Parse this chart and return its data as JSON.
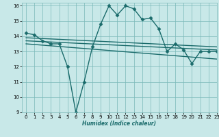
{
  "bg_color": "#c8e8e8",
  "grid_color": "#7ab8b8",
  "line_color": "#1a6b6b",
  "xlabel": "Humidex (Indice chaleur)",
  "xlim": [
    -0.5,
    23
  ],
  "ylim": [
    9,
    16.2
  ],
  "yticks": [
    9,
    10,
    11,
    12,
    13,
    14,
    15,
    16
  ],
  "xticks": [
    0,
    1,
    2,
    3,
    4,
    5,
    6,
    7,
    8,
    9,
    10,
    11,
    12,
    13,
    14,
    15,
    16,
    17,
    18,
    19,
    20,
    21,
    22,
    23
  ],
  "series": [
    {
      "x": [
        0,
        1,
        2,
        3,
        4,
        5,
        6,
        7,
        8,
        9,
        10,
        11,
        12,
        13,
        14,
        15,
        16,
        17,
        18,
        19,
        20,
        21,
        22,
        23
      ],
      "y": [
        14.2,
        14.1,
        13.7,
        13.5,
        13.5,
        12.0,
        9.0,
        11.0,
        13.3,
        14.8,
        16.0,
        15.4,
        16.0,
        15.8,
        15.1,
        15.2,
        14.5,
        13.0,
        13.5,
        13.1,
        12.2,
        13.0,
        13.0,
        13.0
      ],
      "marker": "D",
      "markersize": 2.5,
      "linewidth": 1.0
    },
    {
      "x": [
        0,
        23
      ],
      "y": [
        13.9,
        13.3
      ],
      "marker": null,
      "markersize": 0,
      "linewidth": 1.0
    },
    {
      "x": [
        0,
        23
      ],
      "y": [
        13.7,
        13.1
      ],
      "marker": null,
      "markersize": 0,
      "linewidth": 1.0
    },
    {
      "x": [
        0,
        23
      ],
      "y": [
        13.5,
        12.5
      ],
      "marker": null,
      "markersize": 0,
      "linewidth": 1.0
    }
  ]
}
